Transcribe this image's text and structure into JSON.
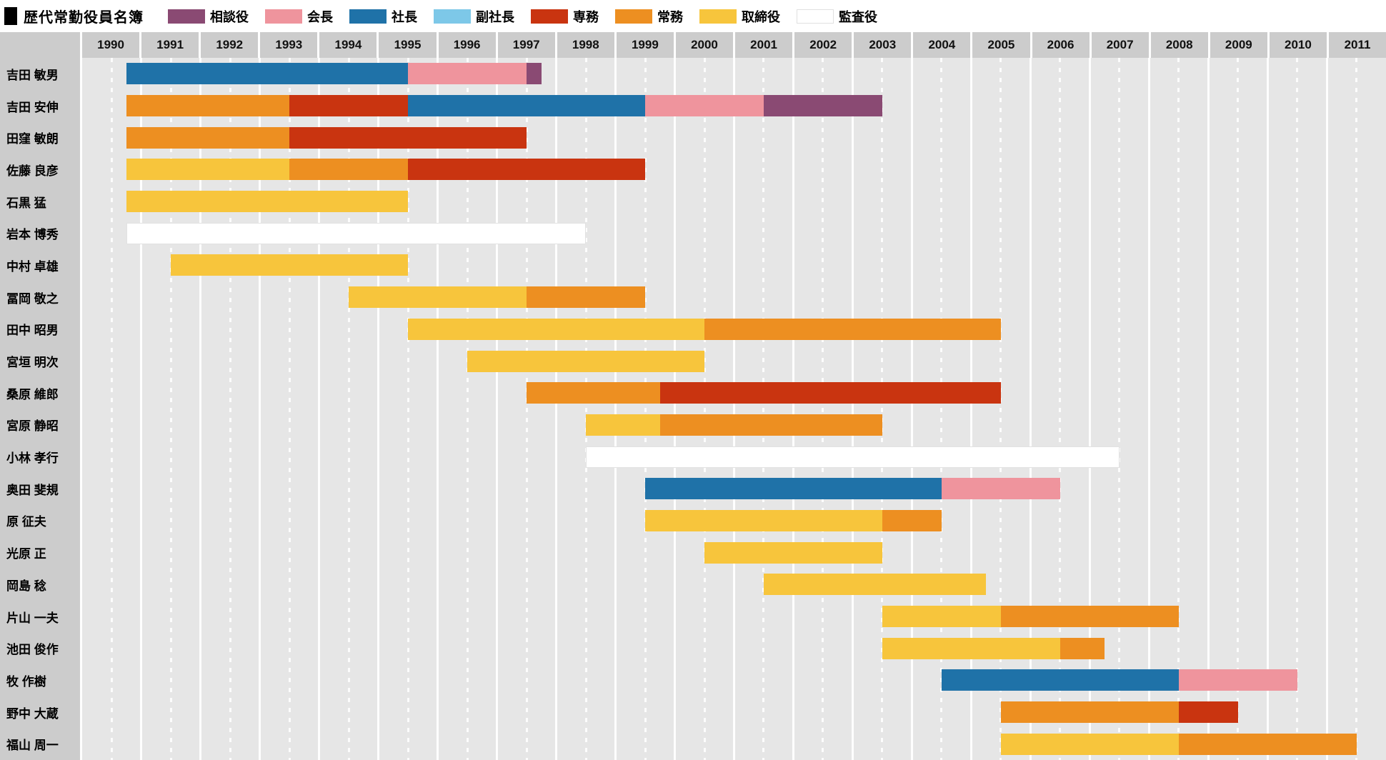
{
  "title": "歴代常勤役員名簿",
  "chart_data": {
    "type": "bar",
    "subtype": "gantt-timeline",
    "title": "歴代常勤役員名簿",
    "x_axis": {
      "min": 1989.5,
      "max": 2011.5,
      "tick_years": [
        1990,
        1991,
        1992,
        1993,
        1994,
        1995,
        1996,
        1997,
        1998,
        1999,
        2000,
        2001,
        2002,
        2003,
        2004,
        2005,
        2006,
        2007,
        2008,
        2009,
        2010,
        2011
      ]
    },
    "grid": {
      "solid_lines": "year-boundaries",
      "dashed_lines": "year-centers"
    },
    "legend_position": "top",
    "roles": {
      "advisor": {
        "label": "相談役",
        "color": "#8a4a73"
      },
      "chairman": {
        "label": "会長",
        "color": "#ef949d"
      },
      "president": {
        "label": "社長",
        "color": "#1f72a8"
      },
      "vice_president": {
        "label": "副社長",
        "color": "#7dc8e8"
      },
      "senior_md": {
        "label": "専務",
        "color": "#c93410"
      },
      "managing_dir": {
        "label": "常務",
        "color": "#ed8f21"
      },
      "director": {
        "label": "取締役",
        "color": "#f7c53c"
      },
      "auditor": {
        "label": "監査役",
        "color": "#ffffff"
      }
    },
    "legend_order": [
      "advisor",
      "chairman",
      "president",
      "vice_president",
      "senior_md",
      "managing_dir",
      "director",
      "auditor"
    ],
    "people": [
      {
        "name": "吉田 敏男",
        "segments": [
          {
            "role": "president",
            "start": 1990.25,
            "end": 1995.0
          },
          {
            "role": "chairman",
            "start": 1995.0,
            "end": 1997.0
          },
          {
            "role": "advisor",
            "start": 1997.0,
            "end": 1997.25
          }
        ]
      },
      {
        "name": "吉田 安伸",
        "segments": [
          {
            "role": "managing_dir",
            "start": 1990.25,
            "end": 1993.0
          },
          {
            "role": "senior_md",
            "start": 1993.0,
            "end": 1995.0
          },
          {
            "role": "president",
            "start": 1995.0,
            "end": 1999.0
          },
          {
            "role": "chairman",
            "start": 1999.0,
            "end": 2001.0
          },
          {
            "role": "advisor",
            "start": 2001.0,
            "end": 2003.0
          }
        ]
      },
      {
        "name": "田窪 敏朗",
        "segments": [
          {
            "role": "managing_dir",
            "start": 1990.25,
            "end": 1993.0
          },
          {
            "role": "senior_md",
            "start": 1993.0,
            "end": 1997.0
          }
        ]
      },
      {
        "name": "佐藤 良彦",
        "segments": [
          {
            "role": "director",
            "start": 1990.25,
            "end": 1993.0
          },
          {
            "role": "managing_dir",
            "start": 1993.0,
            "end": 1995.0
          },
          {
            "role": "senior_md",
            "start": 1995.0,
            "end": 1999.0
          }
        ]
      },
      {
        "name": "石黒 猛",
        "segments": [
          {
            "role": "director",
            "start": 1990.25,
            "end": 1995.0
          }
        ]
      },
      {
        "name": "岩本 博秀",
        "segments": [
          {
            "role": "auditor",
            "start": 1990.25,
            "end": 1998.0
          }
        ]
      },
      {
        "name": "中村 卓雄",
        "segments": [
          {
            "role": "director",
            "start": 1991.0,
            "end": 1995.0
          }
        ]
      },
      {
        "name": "冨岡 敬之",
        "segments": [
          {
            "role": "director",
            "start": 1994.0,
            "end": 1997.0
          },
          {
            "role": "managing_dir",
            "start": 1997.0,
            "end": 1999.0
          }
        ]
      },
      {
        "name": "田中 昭男",
        "segments": [
          {
            "role": "director",
            "start": 1995.0,
            "end": 2000.0
          },
          {
            "role": "managing_dir",
            "start": 2000.0,
            "end": 2005.0
          }
        ]
      },
      {
        "name": "宮垣 明次",
        "segments": [
          {
            "role": "director",
            "start": 1996.0,
            "end": 2000.0
          }
        ]
      },
      {
        "name": "桑原 維郎",
        "segments": [
          {
            "role": "managing_dir",
            "start": 1997.0,
            "end": 1999.25
          },
          {
            "role": "senior_md",
            "start": 1999.25,
            "end": 2005.0
          }
        ]
      },
      {
        "name": "宮原 静昭",
        "segments": [
          {
            "role": "director",
            "start": 1998.0,
            "end": 1999.25
          },
          {
            "role": "managing_dir",
            "start": 1999.25,
            "end": 2003.0
          }
        ]
      },
      {
        "name": "小林 孝行",
        "segments": [
          {
            "role": "auditor",
            "start": 1998.0,
            "end": 2007.0
          }
        ]
      },
      {
        "name": "奥田 斐規",
        "segments": [
          {
            "role": "president",
            "start": 1999.0,
            "end": 2004.0
          },
          {
            "role": "chairman",
            "start": 2004.0,
            "end": 2006.0
          }
        ]
      },
      {
        "name": "原 征夫",
        "segments": [
          {
            "role": "director",
            "start": 1999.0,
            "end": 2003.0
          },
          {
            "role": "managing_dir",
            "start": 2003.0,
            "end": 2004.0
          }
        ]
      },
      {
        "name": "光原 正",
        "segments": [
          {
            "role": "director",
            "start": 2000.0,
            "end": 2003.0
          }
        ]
      },
      {
        "name": "岡島 稔",
        "segments": [
          {
            "role": "director",
            "start": 2001.0,
            "end": 2004.75
          }
        ]
      },
      {
        "name": "片山 一夫",
        "segments": [
          {
            "role": "director",
            "start": 2003.0,
            "end": 2005.0
          },
          {
            "role": "managing_dir",
            "start": 2005.0,
            "end": 2008.0
          }
        ]
      },
      {
        "name": "池田 俊作",
        "segments": [
          {
            "role": "director",
            "start": 2003.0,
            "end": 2006.0
          },
          {
            "role": "managing_dir",
            "start": 2006.0,
            "end": 2006.75
          }
        ]
      },
      {
        "name": "牧 作樹",
        "segments": [
          {
            "role": "president",
            "start": 2004.0,
            "end": 2008.0
          },
          {
            "role": "chairman",
            "start": 2008.0,
            "end": 2010.0
          }
        ]
      },
      {
        "name": "野中 大蔵",
        "segments": [
          {
            "role": "managing_dir",
            "start": 2005.0,
            "end": 2008.0
          },
          {
            "role": "senior_md",
            "start": 2008.0,
            "end": 2009.0
          }
        ]
      },
      {
        "name": "福山 周一",
        "segments": [
          {
            "role": "director",
            "start": 2005.0,
            "end": 2008.0
          },
          {
            "role": "managing_dir",
            "start": 2008.0,
            "end": 2011.0
          }
        ]
      }
    ],
    "colors": {
      "plot_background": "#e6e6e6",
      "header_background": "#cccccc",
      "legend_background": "#ffffff",
      "gridline": "#ffffff"
    }
  }
}
